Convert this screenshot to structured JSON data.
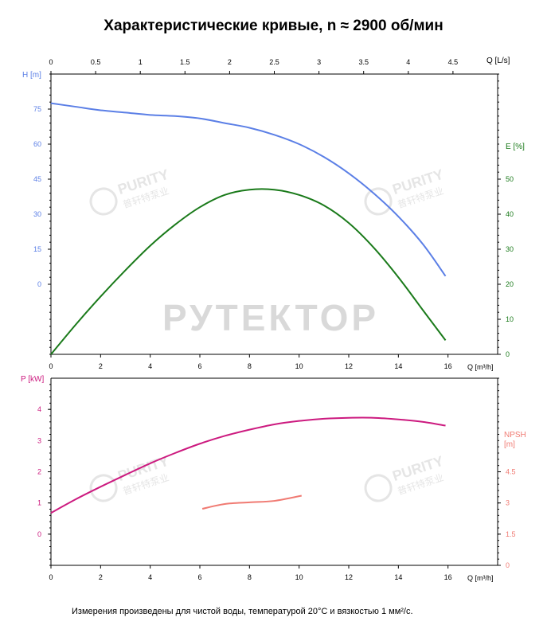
{
  "page": {
    "title": "Характеристические кривые, n ≈ 2900 об/мин",
    "footnote": "Измерения произведены для чистой воды, температурой 20°С и вязкостью 1 мм²/с.",
    "watermark_text": "РУТЕКТОР",
    "logo_text": "PURITY",
    "logo_subtext": "普轩特泵业"
  },
  "colors": {
    "head": "#5b7fe6",
    "efficiency": "#1a7a1a",
    "power": "#cc1a7f",
    "npsh": "#f07a72",
    "grid": "#c8c8c8",
    "axis": "#000000",
    "watermark": "#d9d9d9"
  },
  "chart_data": [
    {
      "type": "line",
      "panel": "upper",
      "x_bottom_label": "Q [m³/h]",
      "x_bottom_ticks": [
        "0",
        "2",
        "4",
        "6",
        "8",
        "10",
        "12",
        "14",
        "16"
      ],
      "x_bottom_range": [
        0,
        18
      ],
      "x_top_label": "Q [L/s]",
      "x_top_ticks": [
        "0",
        "0.5",
        "1",
        "1.5",
        "2",
        "2.5",
        "3",
        "3.5",
        "4",
        "4.5"
      ],
      "y_left_label": "H [m]",
      "y_left_ticks": [
        "0",
        "15",
        "30",
        "45",
        "60",
        "75"
      ],
      "y_left_range": [
        -30,
        90
      ],
      "y_right_label": "E [%]",
      "y_right_ticks": [
        "0",
        "10",
        "20",
        "30",
        "40",
        "50"
      ],
      "y_right_range": [
        0,
        80
      ],
      "grid": false,
      "series": [
        {
          "name": "H [m]",
          "axis": "left",
          "x": [
            0,
            1,
            2,
            3,
            4,
            5,
            6,
            7,
            8,
            9,
            10,
            11,
            12,
            13,
            14,
            15,
            15.9
          ],
          "y": [
            77.5,
            76,
            74.5,
            73.5,
            72.5,
            72,
            71,
            69,
            67,
            64,
            60,
            54.5,
            47.5,
            39,
            29,
            17,
            3.5
          ]
        },
        {
          "name": "E [%]",
          "axis": "right",
          "x": [
            0,
            1,
            2,
            3,
            4,
            5,
            6,
            7,
            8,
            9,
            10,
            11,
            12,
            13,
            14,
            15,
            15.9
          ],
          "y": [
            0,
            8.5,
            16.5,
            24,
            31,
            37,
            42,
            45.5,
            47,
            47,
            45.5,
            42.5,
            37.5,
            30.5,
            22,
            12.5,
            4
          ]
        }
      ]
    },
    {
      "type": "line",
      "panel": "lower",
      "x_bottom_label": "Q [m³/h]",
      "x_bottom_ticks": [
        "0",
        "2",
        "4",
        "6",
        "8",
        "10",
        "12",
        "14",
        "16"
      ],
      "x_bottom_range": [
        0,
        18
      ],
      "y_left_label": "P [kW]",
      "y_left_ticks": [
        "0",
        "1",
        "2",
        "3",
        "4"
      ],
      "y_left_range": [
        -1,
        5
      ],
      "y_right_label_line1": "NPSH",
      "y_right_label_line2": "[m]",
      "y_right_ticks": [
        "0",
        "1.5",
        "3",
        "4.5"
      ],
      "y_right_range": [
        0,
        9
      ],
      "grid": false,
      "series": [
        {
          "name": "P [kW]",
          "axis": "left",
          "x": [
            0,
            1,
            2,
            3,
            4,
            5,
            6,
            7,
            8,
            9,
            10,
            11,
            12,
            13,
            14,
            15,
            15.9
          ],
          "y": [
            0.68,
            1.12,
            1.52,
            1.9,
            2.27,
            2.6,
            2.9,
            3.15,
            3.35,
            3.52,
            3.63,
            3.7,
            3.73,
            3.73,
            3.68,
            3.6,
            3.48
          ]
        },
        {
          "name": "NPSH [m]",
          "axis": "right",
          "x": [
            6.1,
            7,
            8,
            9,
            10.1
          ],
          "y": [
            2.72,
            2.95,
            3.03,
            3.1,
            3.35
          ]
        }
      ]
    }
  ]
}
